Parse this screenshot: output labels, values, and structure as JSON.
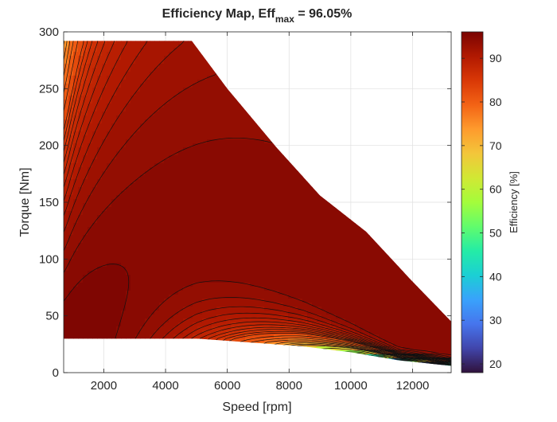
{
  "chart_data": {
    "type": "contour",
    "title_main": "Efficiency Map, Eff",
    "title_sub": "max",
    "title_value": " = 96.05%",
    "xlabel": "Speed [rpm]",
    "ylabel": "Torque [Nm]",
    "xlim": [
      700,
      13250
    ],
    "ylim": [
      0,
      300
    ],
    "xticks": [
      2000,
      4000,
      6000,
      8000,
      10000,
      12000
    ],
    "yticks": [
      0,
      50,
      100,
      150,
      200,
      250,
      300
    ],
    "grid": true,
    "colorbar": {
      "label": "Efficiency [%]",
      "range": [
        18,
        96.05
      ],
      "ticks": [
        20,
        30,
        40,
        50,
        60,
        70,
        80,
        90
      ],
      "colormap": [
        "#30123b",
        "#4145ab",
        "#4675ed",
        "#39a2fc",
        "#1bcfd4",
        "#24eca6",
        "#61fc6c",
        "#a4fc3b",
        "#d1e834",
        "#f3c63a",
        "#fe9b2d",
        "#f36315",
        "#d93806",
        "#b11901",
        "#7a0402"
      ]
    },
    "eff_max_percent": 96.05,
    "boundary": {
      "speed_rpm": [
        700,
        4850,
        6000,
        7600,
        9000,
        10500,
        11900,
        13250,
        13250,
        11500,
        10000,
        8500,
        7000,
        6000,
        5000,
        4400,
        700
      ],
      "torque_nm": [
        292,
        292,
        250,
        198,
        156,
        124,
        83,
        45,
        6,
        11,
        18,
        23,
        26,
        28,
        30,
        30,
        30
      ]
    },
    "contour_levels_percent": [
      20,
      25,
      30,
      35,
      40,
      45,
      50,
      55,
      60,
      65,
      70,
      72,
      74,
      76,
      78,
      80,
      82,
      84,
      85,
      86,
      87,
      88,
      89,
      90,
      91,
      92,
      93,
      94,
      95,
      96
    ]
  }
}
